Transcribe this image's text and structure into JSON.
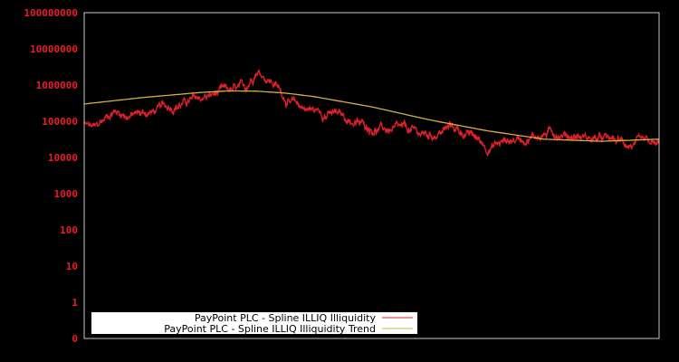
{
  "chart_data": {
    "type": "line",
    "title": "",
    "xlabel": "",
    "ylabel": "",
    "yscale": "log",
    "ylim": [
      0,
      100000000
    ],
    "y_ticks": [
      "0",
      "1",
      "10",
      "100",
      "1000",
      "10000",
      "100000",
      "1000000",
      "10000000",
      "100000000"
    ],
    "x_ticks": [],
    "grid": false,
    "legend_position": "lower left",
    "background": "#000000",
    "axis_color": "#c8c8c8",
    "series": [
      {
        "name": "PayPoint PLC - Spline ILLIQ Illiquidity",
        "color": "#e0202a",
        "description": "noisy daily illiquidity series (approximate envelope, x normalized 0-1)",
        "x": [
          0.0,
          0.02,
          0.05,
          0.08,
          0.12,
          0.16,
          0.2,
          0.24,
          0.28,
          0.3,
          0.33,
          0.36,
          0.4,
          0.44,
          0.48,
          0.52,
          0.56,
          0.6,
          0.64,
          0.68,
          0.7,
          0.74,
          0.78,
          0.82,
          0.86,
          0.9,
          0.94,
          0.97,
          1.0
        ],
        "values": [
          80000,
          60000,
          200000,
          150000,
          180000,
          300000,
          400000,
          600000,
          700000,
          3000000,
          1200000,
          300000,
          200000,
          150000,
          80000,
          60000,
          50000,
          40000,
          70000,
          35000,
          20000,
          30000,
          40000,
          50000,
          40000,
          30000,
          25000,
          20000,
          18000
        ]
      },
      {
        "name": "PayPoint PLC - Spline ILLIQ Illiquidity Trend",
        "color": "#d4b040",
        "x": [
          0.0,
          0.1,
          0.2,
          0.25,
          0.3,
          0.35,
          0.4,
          0.5,
          0.6,
          0.7,
          0.8,
          0.9,
          1.0
        ],
        "values": [
          300000,
          450000,
          620000,
          690000,
          680000,
          600000,
          480000,
          250000,
          110000,
          55000,
          32000,
          28000,
          32000
        ]
      }
    ]
  },
  "legend": {
    "items": [
      {
        "label": "PayPoint PLC - Spline ILLIQ Illiquidity",
        "color": "#e0202a"
      },
      {
        "label": "PayPoint PLC - Spline ILLIQ Illiquidity Trend",
        "color": "#d4b040"
      }
    ]
  }
}
